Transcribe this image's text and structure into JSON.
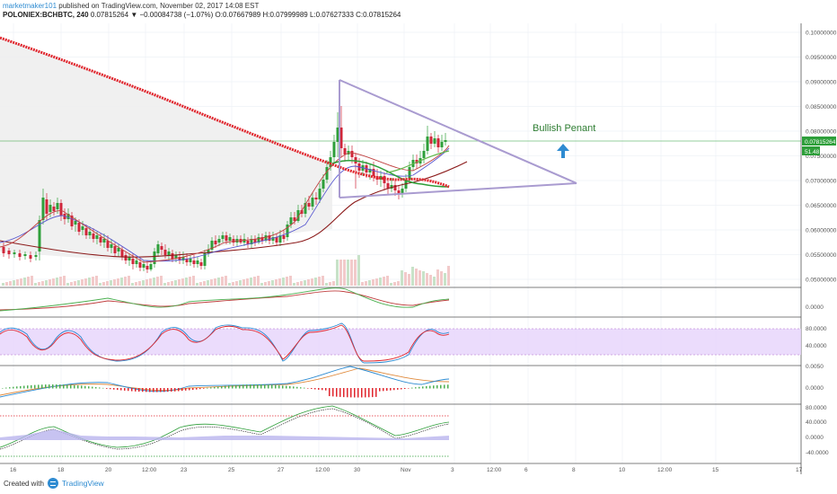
{
  "header": {
    "author": "marketmaker101",
    "published": " published on TradingView.com, November 02, 2017 14:08 EST",
    "symbol": "POLONIEX:BCHBTC, 240",
    "price": "0.07815264",
    "change": "▼ −0.00084738 (−1.07%)",
    "ohlc": "O:0.07667989 H:0.07999989 L:0.07627333 C:0.07815264"
  },
  "annotation": "Bullish Penant",
  "price_badge": "0.07815264",
  "volume_badge": "51.48",
  "price_axis": [
    "0.10000000",
    "0.09500000",
    "0.09000000",
    "0.08500000",
    "0.08000000",
    "0.07500000",
    "0.07000000",
    "0.06500000",
    "0.06000000",
    "0.05500000",
    "0.05000000"
  ],
  "macd_axis": [
    "0.0000"
  ],
  "stoch_axis": [
    "80.0000",
    "40.0000"
  ],
  "osc_axis": [
    "0.0050",
    "0.0000"
  ],
  "cci_axis": [
    "80.0000",
    "40.0000",
    "0.0000",
    "-40.0000"
  ],
  "time_axis": [
    "16",
    "18",
    "20",
    "12:00",
    "23",
    "25",
    "27",
    "12:00",
    "30",
    "Nov",
    "3",
    "12:00",
    "6",
    "8",
    "10",
    "12:00",
    "15",
    "17"
  ],
  "footer": {
    "created": "Created with",
    "brand": "TradingView"
  },
  "colors": {
    "ma_red": "#e0262e",
    "pennant": "#a99bd0",
    "up": "#2e9f3a",
    "down": "#d0263a",
    "stoch_band": "#e6d3fb",
    "accent": "#2e8bd1"
  },
  "chart_data": {
    "type": "line",
    "title": "POLONIEX:BCHBTC, 240",
    "ylim": [
      0.05,
      0.1
    ],
    "annotations": [
      "Bullish Penant"
    ],
    "current_price": 0.07815264,
    "ohlc": {
      "open": 0.07667989,
      "high": 0.07999989,
      "low": 0.07627333,
      "close": 0.07815264
    }
  }
}
